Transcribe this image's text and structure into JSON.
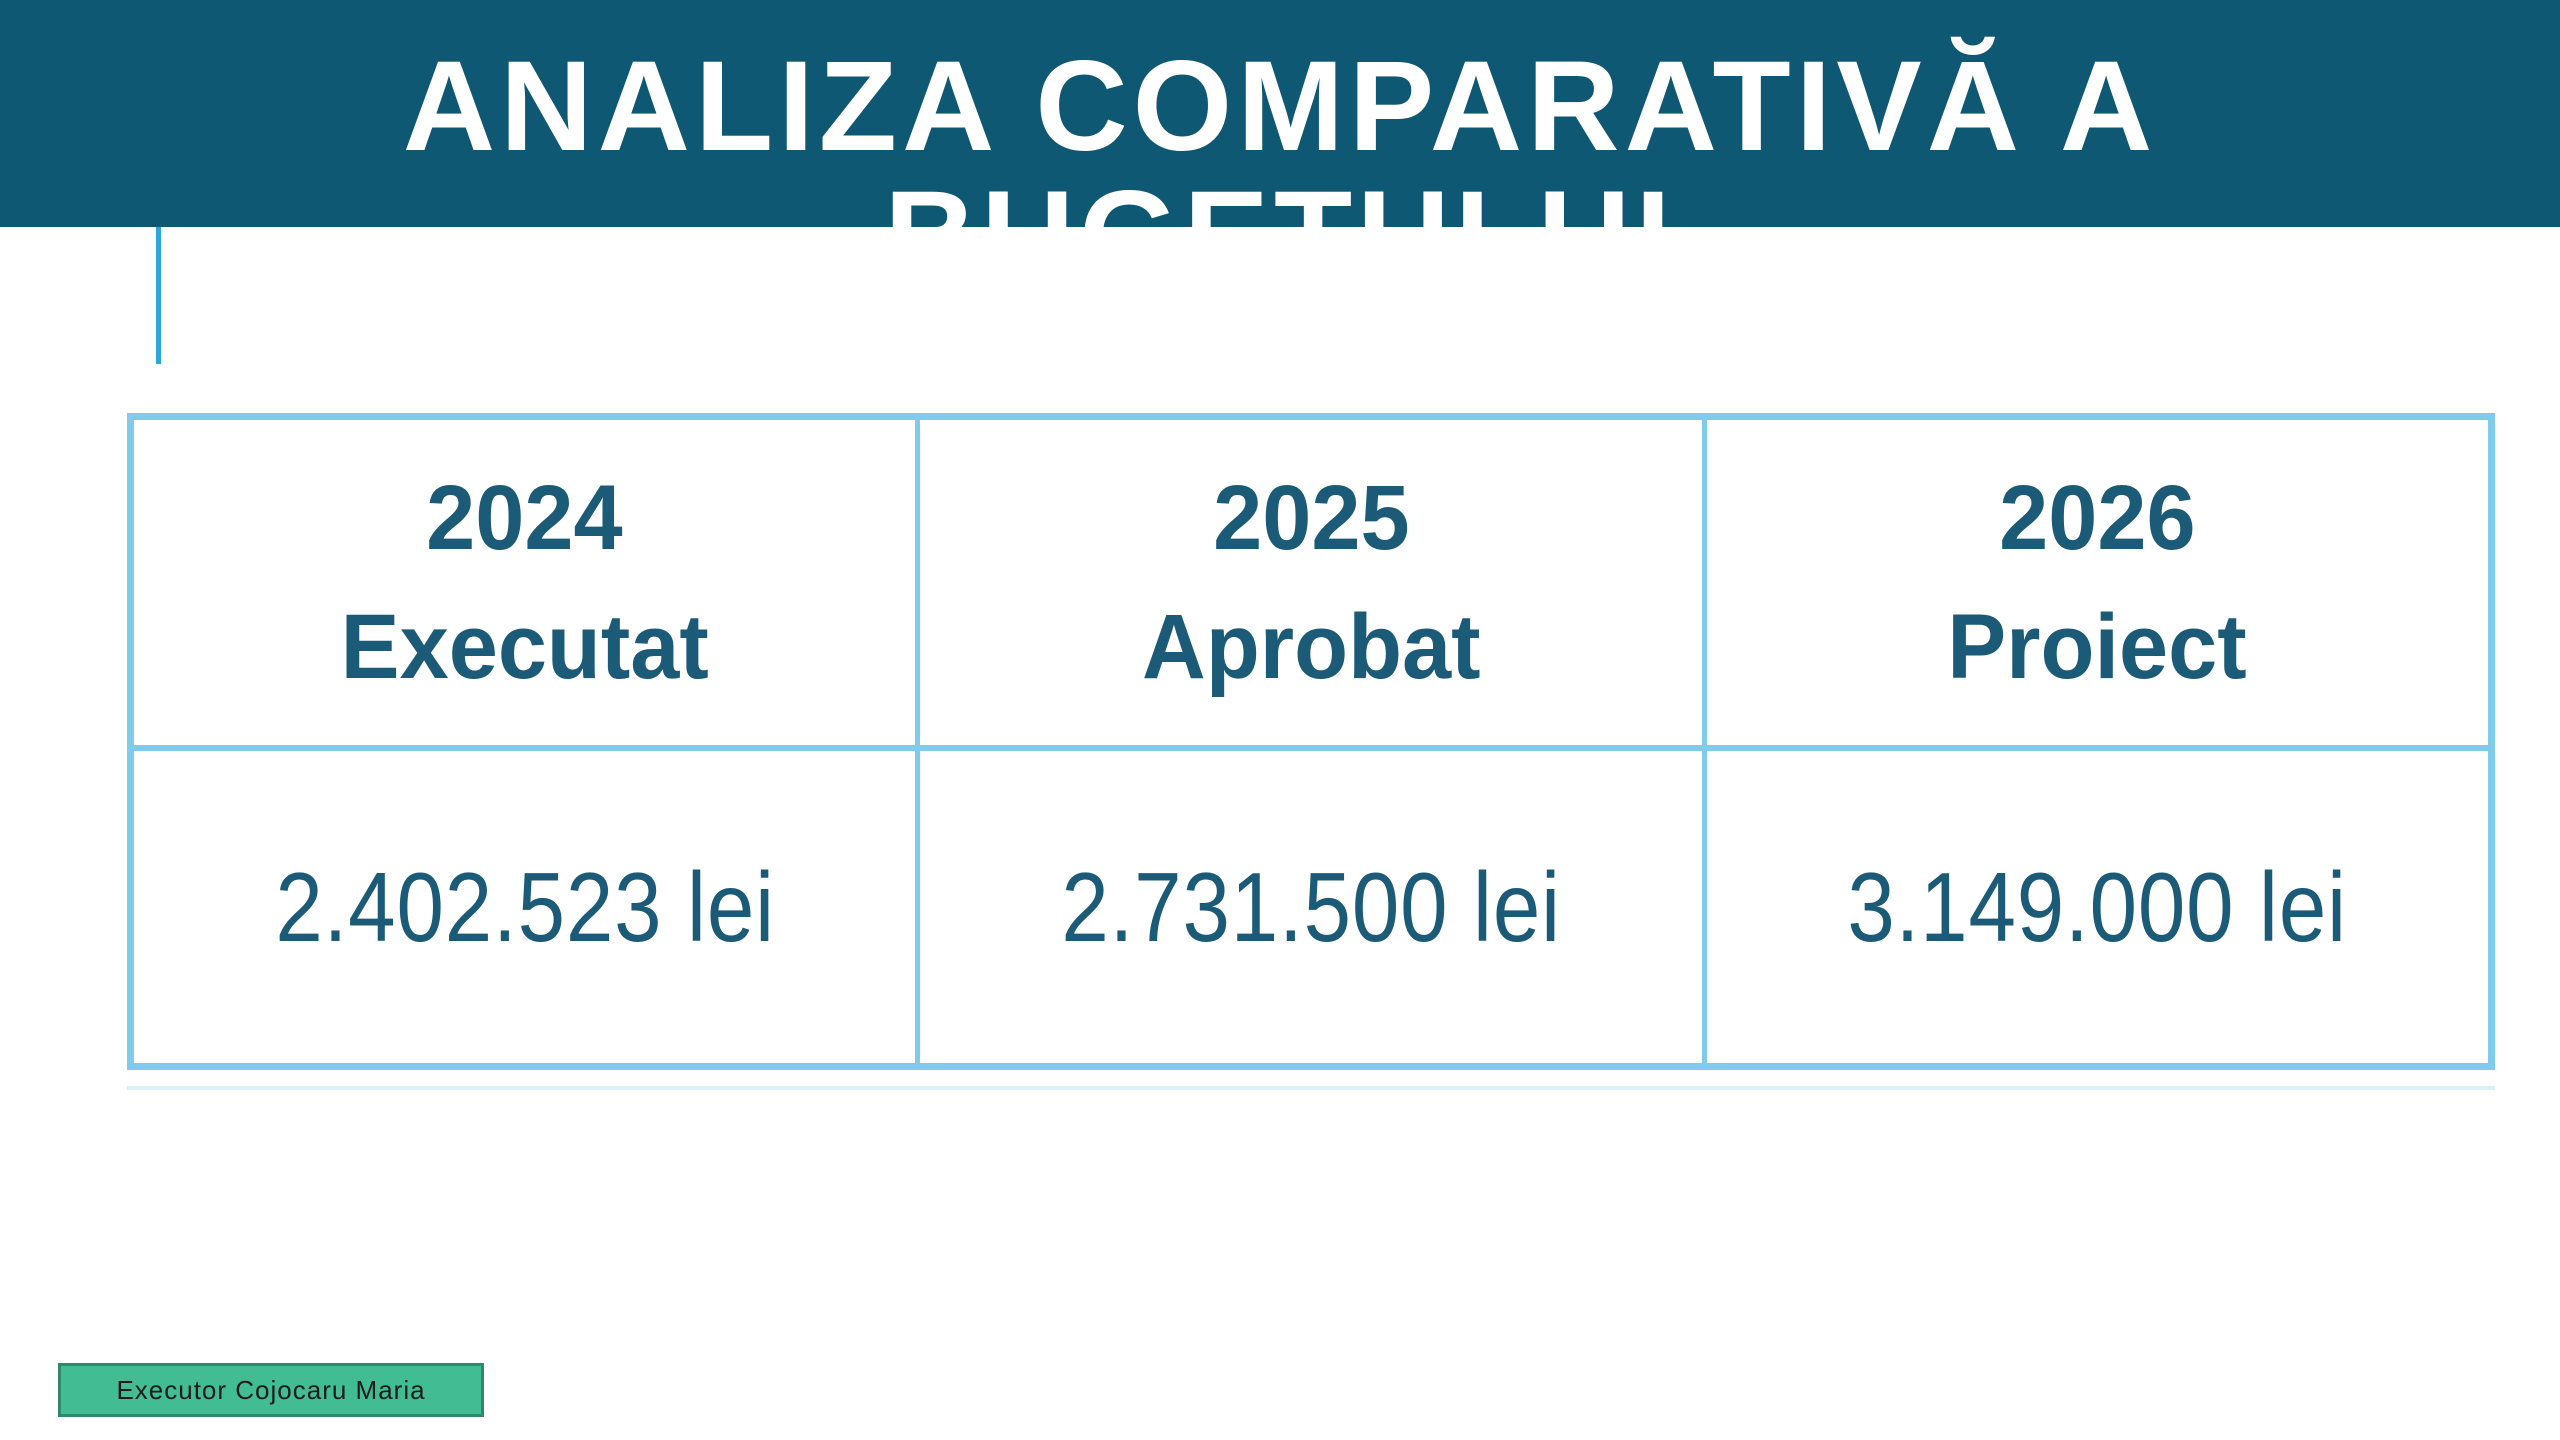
{
  "slide": {
    "title": {
      "line1": "ANALIZA COMPARATIVĂ A",
      "line2": "BUGETULUI",
      "full": "ANALIZA COMPARATIVĂ A BUGETULUI"
    }
  },
  "budget_table": {
    "headers": [
      {
        "year": "2024",
        "status": "Executat"
      },
      {
        "year": "2025",
        "status": "Aprobat"
      },
      {
        "year": "2026",
        "status": "Proiect"
      }
    ],
    "values": [
      "2.402.523 lei",
      "2.731.500 lei",
      "3.149.000 lei"
    ]
  },
  "footer": {
    "executor": "Executor Cojocaru Maria"
  },
  "colors": {
    "band_background": "#0F5873",
    "accent_line": "#2CA6DB",
    "table_border": "#7FCBEB",
    "table_text": "#1B5B78",
    "badge_fill": "#41BC93",
    "badge_border": "#2E8A6B",
    "title_text": "#FFFFFF"
  }
}
